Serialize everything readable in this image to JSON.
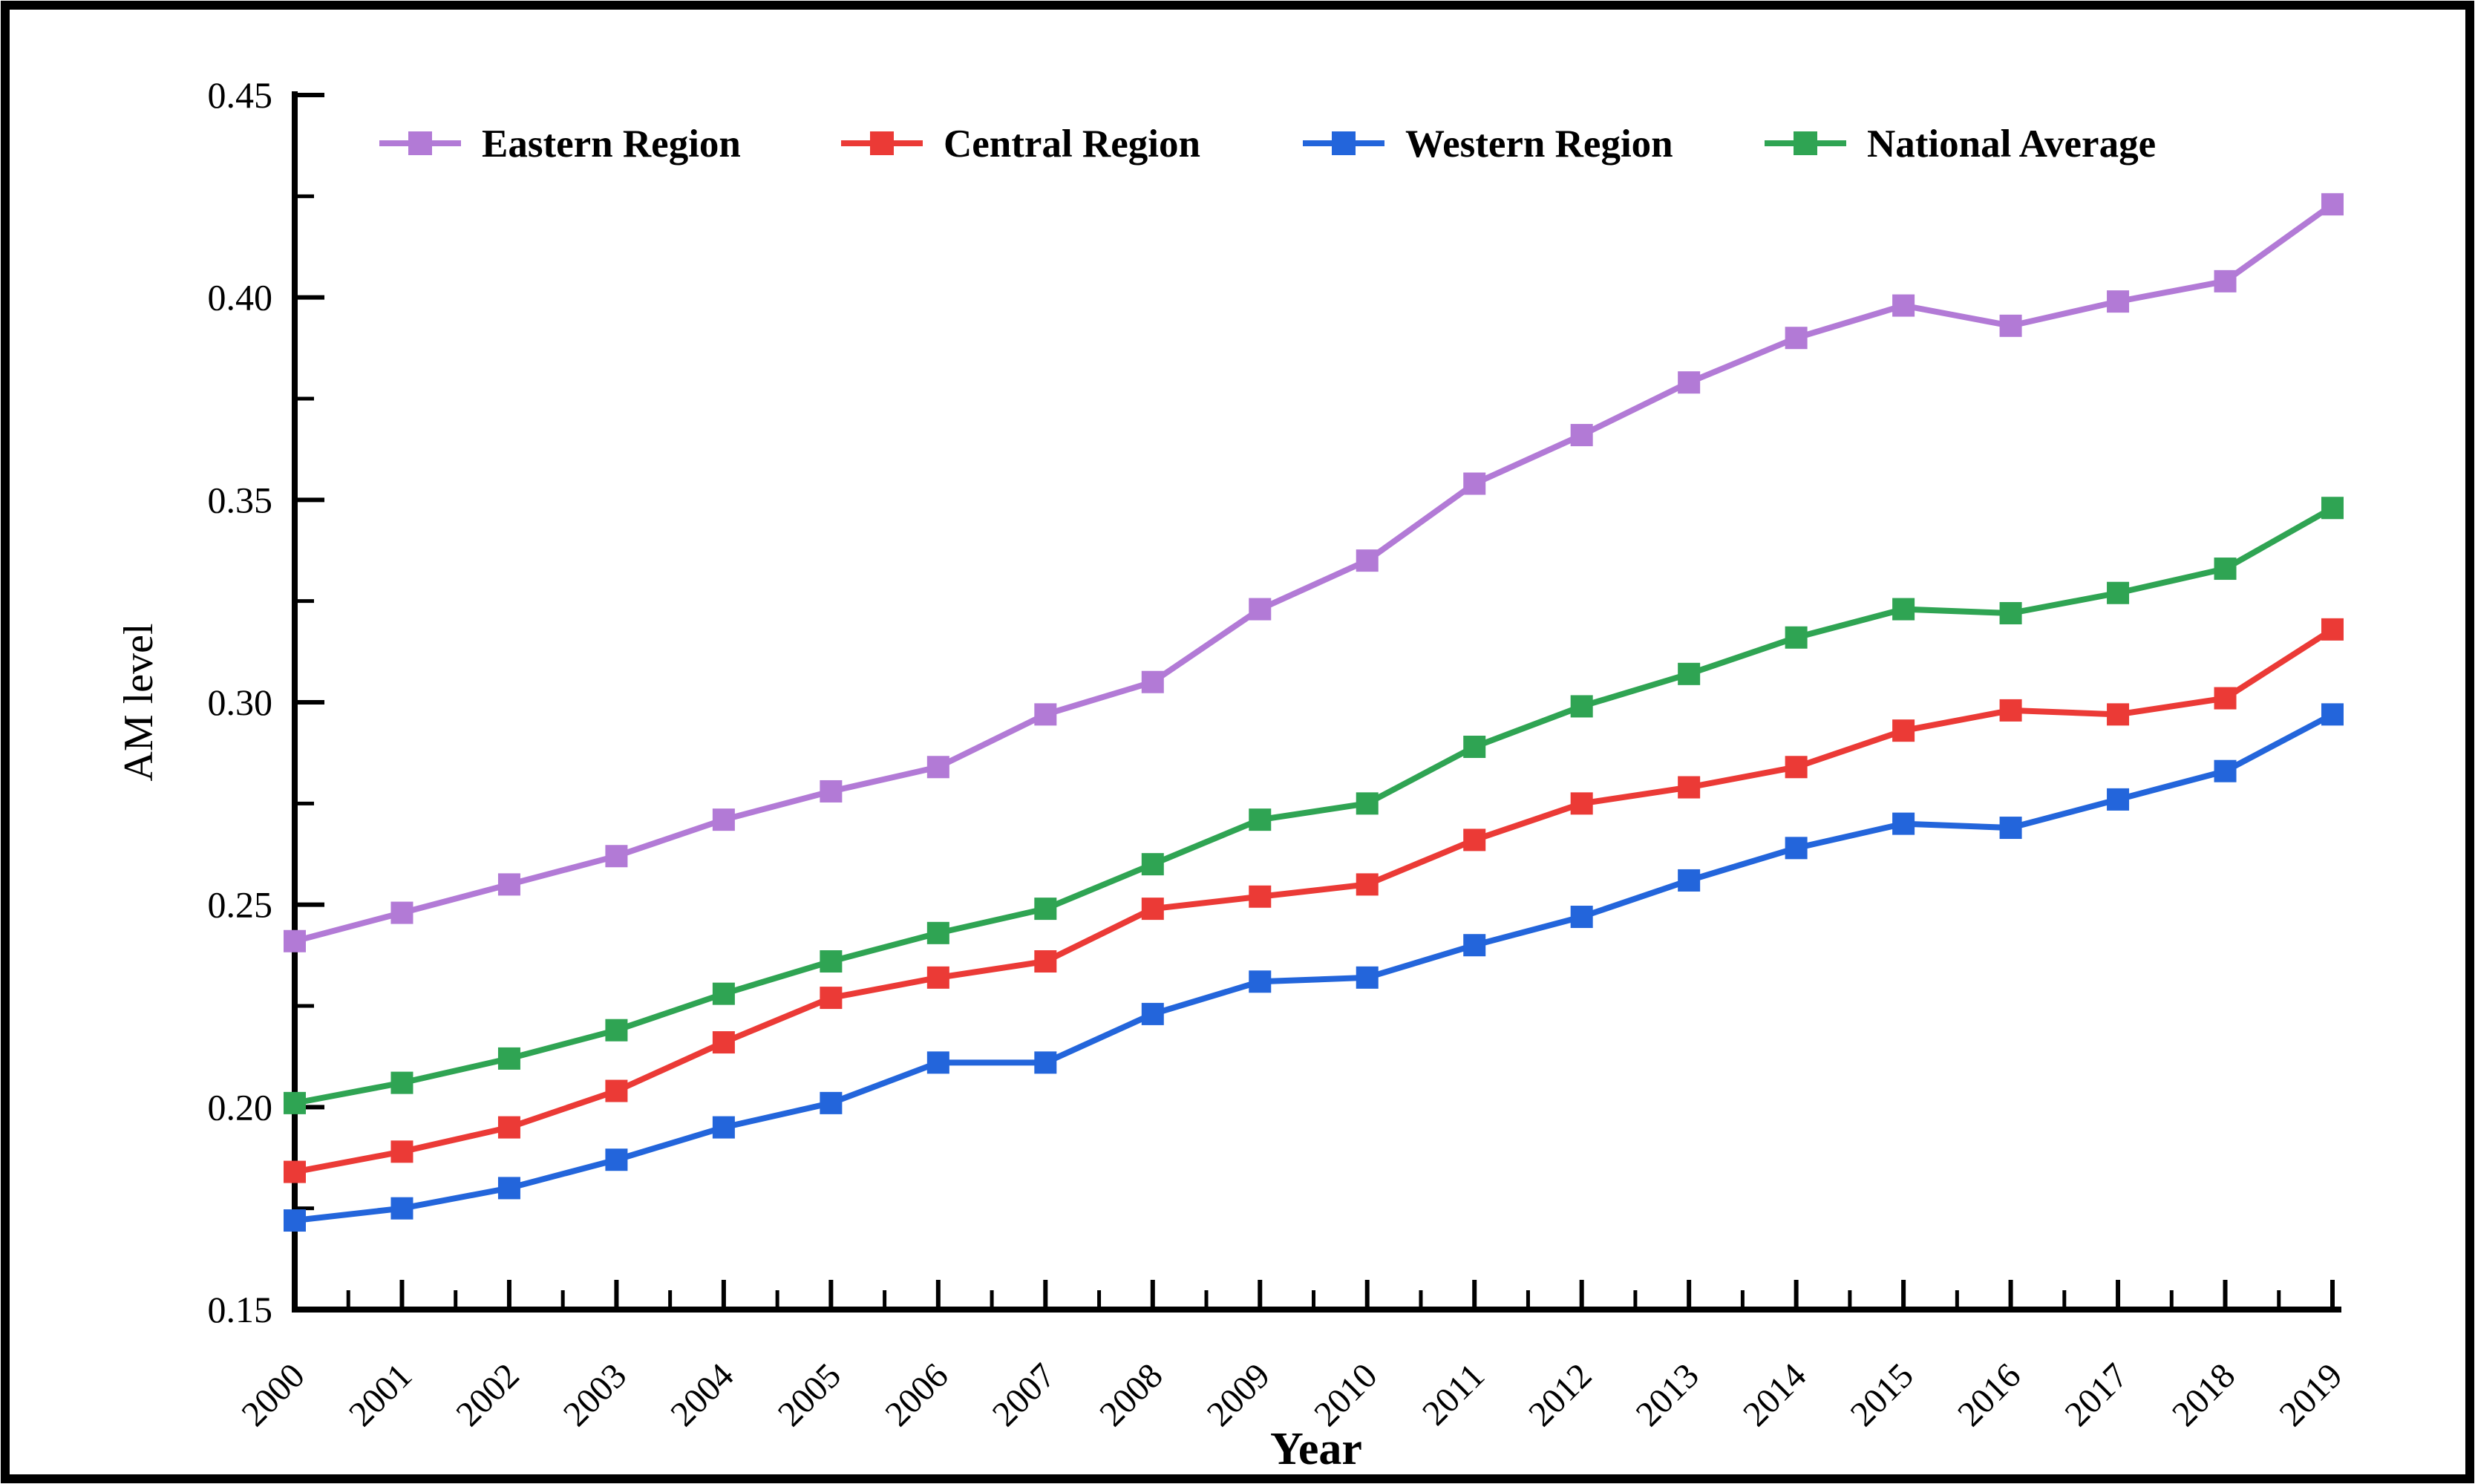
{
  "figure": {
    "background": "#ffffff",
    "border_color": "#000000"
  },
  "chart_data": {
    "type": "line",
    "title": "",
    "xlabel": "Year",
    "ylabel": "AM level",
    "x": [
      2000,
      2001,
      2002,
      2003,
      2004,
      2005,
      2006,
      2007,
      2008,
      2009,
      2010,
      2011,
      2012,
      2013,
      2014,
      2015,
      2016,
      2017,
      2018,
      2019
    ],
    "ylim": [
      0.15,
      0.45
    ],
    "ytick_major_step": 0.05,
    "ytick_minor_step": 0.025,
    "ytick_decimals": 2,
    "xtick_minor_step": 0.5,
    "grid": false,
    "legend_position": "top-inside",
    "marker": "square",
    "series": [
      {
        "name": "Eastern Region",
        "color": "#b27ad6",
        "marker": "square",
        "values": [
          0.241,
          0.248,
          0.255,
          0.262,
          0.271,
          0.278,
          0.284,
          0.297,
          0.305,
          0.323,
          0.335,
          0.354,
          0.366,
          0.379,
          0.39,
          0.398,
          0.393,
          0.399,
          0.404,
          0.423
        ]
      },
      {
        "name": "Central Region",
        "color": "#eb3a36",
        "marker": "square",
        "values": [
          0.184,
          0.189,
          0.195,
          0.204,
          0.216,
          0.227,
          0.232,
          0.236,
          0.249,
          0.252,
          0.255,
          0.266,
          0.275,
          0.279,
          0.284,
          0.293,
          0.298,
          0.297,
          0.301,
          0.318
        ]
      },
      {
        "name": "Western Region",
        "color": "#2365db",
        "marker": "square",
        "values": [
          0.172,
          0.175,
          0.18,
          0.187,
          0.195,
          0.201,
          0.211,
          0.211,
          0.223,
          0.231,
          0.232,
          0.24,
          0.247,
          0.256,
          0.264,
          0.27,
          0.269,
          0.276,
          0.283,
          0.297
        ]
      },
      {
        "name": "National Average",
        "color": "#2fa453",
        "marker": "square",
        "values": [
          0.201,
          0.206,
          0.212,
          0.219,
          0.228,
          0.236,
          0.243,
          0.249,
          0.26,
          0.271,
          0.275,
          0.289,
          0.299,
          0.307,
          0.316,
          0.323,
          0.322,
          0.327,
          0.333,
          0.348
        ]
      }
    ]
  }
}
